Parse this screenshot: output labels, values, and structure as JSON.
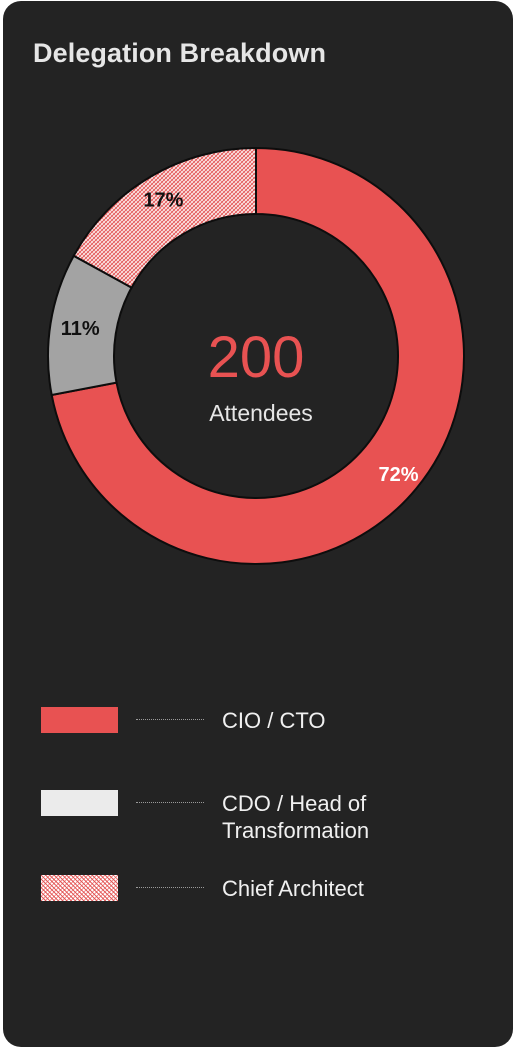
{
  "title": "Delegation Breakdown",
  "center": {
    "value": "200",
    "label": "Attendees"
  },
  "colors": {
    "background": "#232323",
    "accent": "#e85252",
    "gray": "#a3a3a3",
    "light": "#ebebeb"
  },
  "chart_data": {
    "type": "pie",
    "variant": "donut",
    "title": "Delegation Breakdown",
    "total": 200,
    "total_label": "Attendees",
    "categories": [
      "CIO / CTO",
      "CDO / Head of Transformation",
      "Chief Architect"
    ],
    "values": [
      72,
      11,
      17
    ],
    "unit": "%",
    "data_labels": [
      "72%",
      "11%",
      "17%"
    ],
    "colors": [
      "#e85252",
      "#a3a3a3",
      "#e85252-hatched"
    ],
    "legend_position": "bottom"
  },
  "legend": [
    {
      "label_lines": [
        "CIO / CTO"
      ],
      "swatch": "solid-red"
    },
    {
      "label_lines": [
        "CDO / Head of",
        "Transformation"
      ],
      "swatch": "solid-light"
    },
    {
      "label_lines": [
        "Chief Architect"
      ],
      "swatch": "hatched-red"
    }
  ]
}
